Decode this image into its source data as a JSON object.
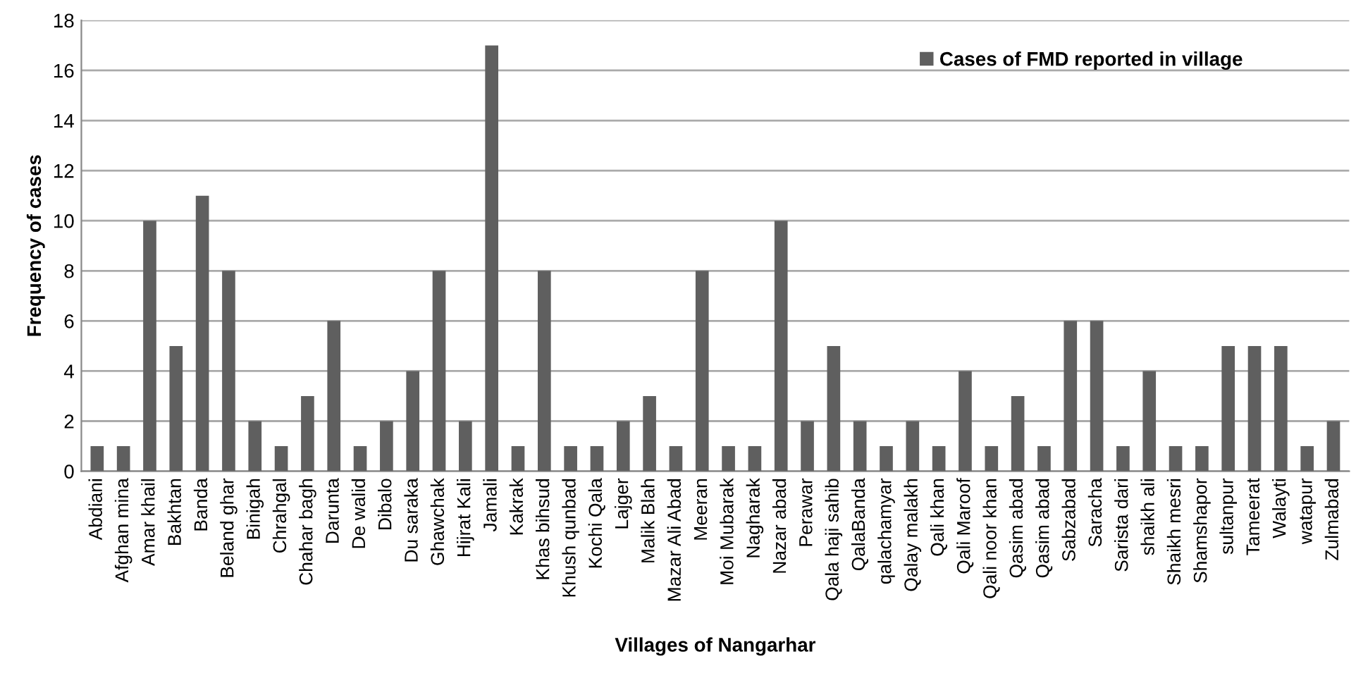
{
  "chart_data": {
    "type": "bar",
    "xlabel": "Villages of Nangarhar",
    "ylabel": "Frequency of cases",
    "categories": [
      "Abdiani",
      "Afghan mina",
      "Amar khail",
      "Bakhtan",
      "Banda",
      "Beland ghar",
      "Binigah",
      "Chrahgal",
      "Chahar bagh",
      "Darunta",
      "De walid",
      "Dibalo",
      "Du saraka",
      "Ghawchak",
      "Hijrat Kali",
      "Jamali",
      "Kakrak",
      "Khas bihsud",
      "Khush qunbad",
      "Kochi Qala",
      "Lajger",
      "Malik Blah",
      "Mazar Ali Abad",
      "Meeran",
      "Moi Mubarak",
      "Nagharak",
      "Nazar abad",
      "Perawar",
      "Qala haji sahib",
      "QalaBanda",
      "qalachamyar",
      "Qalay malakh",
      "Qali khan",
      "Qali Maroof",
      "Qali noor khan",
      "Qasim abad",
      "Qasim abad",
      "Sabzabad",
      "Saracha",
      "Sarista dari",
      "shaikh ali",
      "Shaikh mesri",
      "Shamshapor",
      "sultanpur",
      "Tameerat",
      "Walayti",
      "watapur",
      "Zulmabad"
    ],
    "series": [
      {
        "name": "Cases of FMD reported in village",
        "color": "#5f5f5f",
        "values": [
          1,
          1,
          10,
          5,
          11,
          8,
          2,
          1,
          3,
          6,
          1,
          2,
          4,
          8,
          2,
          17,
          1,
          8,
          1,
          1,
          2,
          3,
          1,
          8,
          1,
          1,
          10,
          2,
          5,
          2,
          1,
          2,
          1,
          4,
          1,
          3,
          1,
          6,
          6,
          1,
          4,
          1,
          1,
          5,
          5,
          5,
          1,
          2
        ]
      }
    ],
    "ylim": [
      0,
      18
    ],
    "yticks": [
      0,
      2,
      4,
      6,
      8,
      10,
      12,
      14,
      16,
      18
    ],
    "grid": "y",
    "legend": "top right"
  }
}
